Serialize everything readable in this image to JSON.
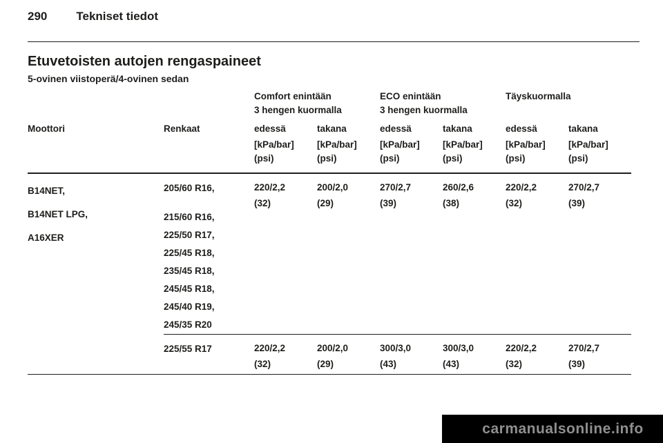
{
  "page": {
    "number": "290",
    "chapter_title": "Tekniset tiedot",
    "section_title": "Etuvetoisten autojen rengaspaineet",
    "subsection_title": "5-ovinen viistoperä/4-ovinen sedan"
  },
  "table": {
    "col_engine": "Moottori",
    "col_tires": "Renkaat",
    "col_front": "edessä",
    "col_rear": "takana",
    "unit_line1": "[kPa/bar]",
    "unit_line2": "(psi)",
    "groups": [
      {
        "line1": "Comfort enintään",
        "line2": "3 hengen kuormalla"
      },
      {
        "line1": "ECO enintään",
        "line2": "3 hengen kuormalla"
      },
      {
        "line1": "Täyskuormalla",
        "line2": ""
      }
    ],
    "rows": [
      {
        "engine_lines": [
          "B14NET,",
          "B14NET LPG,",
          "A16XER"
        ],
        "tire_lines": [
          "205/60 R16,",
          "215/60 R16,",
          "225/50 R17,",
          "225/45 R18,",
          "235/45 R18,",
          "245/45 R18,",
          "245/40 R19,",
          "245/35 R20"
        ],
        "values": [
          {
            "kpa_bar": "220/2,2",
            "psi": "(32)"
          },
          {
            "kpa_bar": "200/2,0",
            "psi": "(29)"
          },
          {
            "kpa_bar": "270/2,7",
            "psi": "(39)"
          },
          {
            "kpa_bar": "260/2,6",
            "psi": "(38)"
          },
          {
            "kpa_bar": "220/2,2",
            "psi": "(32)"
          },
          {
            "kpa_bar": "270/2,7",
            "psi": "(39)"
          }
        ]
      },
      {
        "tire_lines": [
          "225/55 R17"
        ],
        "values": [
          {
            "kpa_bar": "220/2,2",
            "psi": "(32)"
          },
          {
            "kpa_bar": "200/2,0",
            "psi": "(29)"
          },
          {
            "kpa_bar": "300/3,0",
            "psi": "(43)"
          },
          {
            "kpa_bar": "300/3,0",
            "psi": "(43)"
          },
          {
            "kpa_bar": "220/2,2",
            "psi": "(32)"
          },
          {
            "kpa_bar": "270/2,7",
            "psi": "(39)"
          }
        ]
      }
    ]
  },
  "watermark": {
    "text": "carmanualsonline.info",
    "bar_color": "#000000",
    "text_color": "#8f8f8f"
  }
}
